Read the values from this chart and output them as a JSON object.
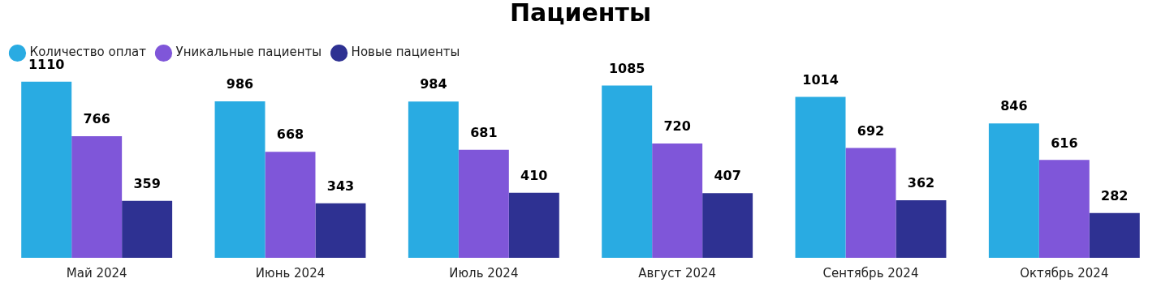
{
  "chart_data": {
    "type": "bar",
    "title": "Пациенты",
    "categories": [
      "Май 2024",
      "Июнь 2024",
      "Июль 2024",
      "Август 2024",
      "Сентябрь 2024",
      "Октябрь 2024"
    ],
    "series": [
      {
        "name": "Количество оплат",
        "color": "#29abe2",
        "values": [
          1110,
          986,
          984,
          1085,
          1014,
          846
        ]
      },
      {
        "name": "Уникальные пациенты",
        "color": "#7f56d9",
        "values": [
          766,
          668,
          681,
          720,
          692,
          616
        ]
      },
      {
        "name": "Новые пациенты",
        "color": "#2e3192",
        "values": [
          359,
          343,
          410,
          407,
          362,
          282
        ]
      }
    ],
    "data_labels": true,
    "legend": "top left",
    "grid": false
  }
}
